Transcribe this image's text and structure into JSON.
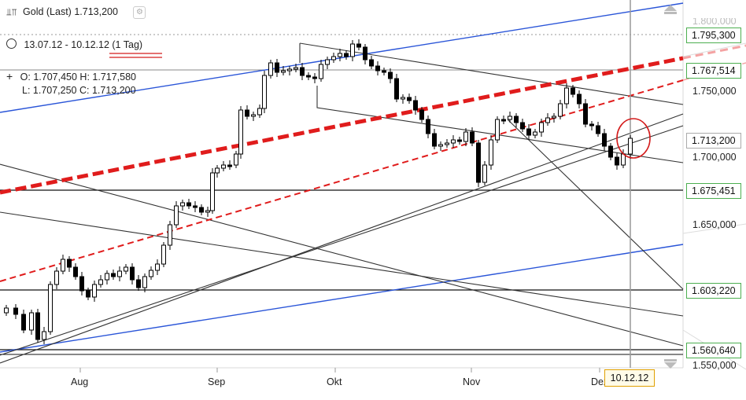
{
  "header": {
    "instrument_line": "Gold (Last) 1.713,200",
    "period": "13.07.12 - 10.12.12 (1 Tag)",
    "ohlc_line1": "O: 1.707,450 H: 1.717,580",
    "ohlc_line2": "L: 1.707,250 C: 1.713,200",
    "icons": [
      "candlestick-icon",
      "clock-icon",
      "crosshair-icon",
      "settings-icon"
    ]
  },
  "axis": {
    "price_labels_plain": [
      "1.750,000",
      "1.700,000",
      "1.650,000",
      "1.550,000"
    ],
    "price_labels_boxed": [
      "1.795,300",
      "1.767,514",
      "1.713,200",
      "1.675,451",
      "1.603,220",
      "1.560,640"
    ],
    "top_partial_label": "1.800,000",
    "month_labels": [
      "Aug",
      "Sep",
      "Okt",
      "Nov",
      "Dez"
    ],
    "current_date": "10.12.12"
  },
  "chart_data": {
    "type": "candlestick",
    "title": "Gold (Last)",
    "subtitle": "13.07.12 - 10.12.12 (1 Tag)",
    "ohlc_last": {
      "open": 1707.45,
      "high": 1717.58,
      "low": 1707.25,
      "close": 1713.2
    },
    "ylim": [
      1545,
      1815
    ],
    "y_ticks": [
      1550,
      1650,
      1700,
      1750
    ],
    "x_tick_labels": [
      "Aug",
      "Sep",
      "Okt",
      "Nov",
      "Dez"
    ],
    "horizontal_levels": [
      1795.3,
      1767.514,
      1713.2,
      1675.451,
      1603.22,
      1560.64
    ],
    "colors": {
      "up": "#ffffff",
      "down": "#000000",
      "trend_red": "#e01c1c",
      "trend_blue": "#2a55d8",
      "level_green": "#4caf50",
      "marker_red": "#d41c1c"
    },
    "grid": false
  }
}
